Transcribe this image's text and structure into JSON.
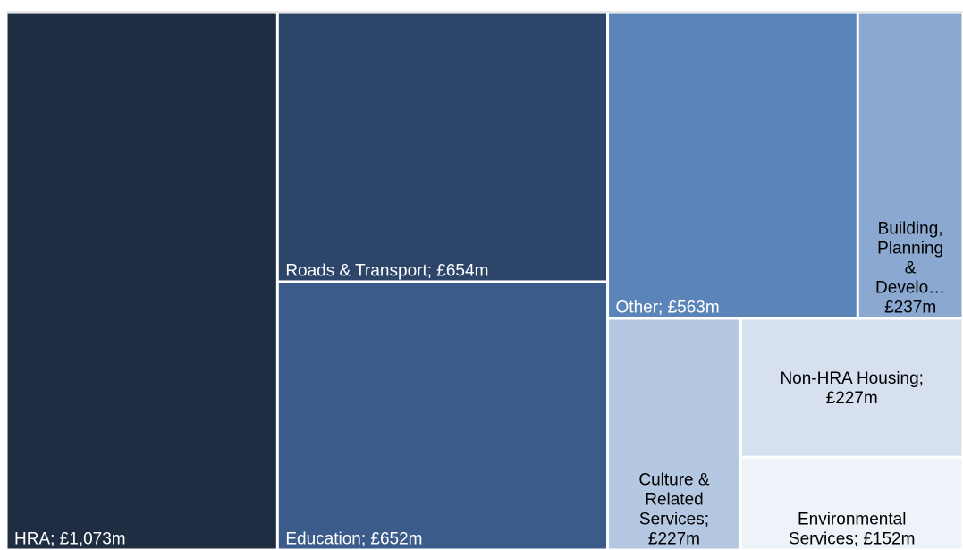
{
  "chart_data": {
    "type": "treemap",
    "labels": [
      [
        "HRA; £1,073m"
      ],
      [
        "Roads & Transport; £654m"
      ],
      [
        "Education; £652m"
      ],
      [
        "Other; £563m"
      ],
      [
        "Building,",
        "Planning",
        "&",
        "Develo…",
        "£237m"
      ],
      [
        "Culture &",
        "Related",
        "Services;",
        "£227m"
      ],
      [
        "Non-HRA Housing;",
        "£227m"
      ],
      [
        "Environmental",
        "Services; £152m"
      ]
    ],
    "values": [
      1073,
      654,
      652,
      563,
      237,
      227,
      227,
      152
    ],
    "colors": [
      "#1f2d42",
      "#2c4569",
      "#3b5c8b",
      "#5b84b8",
      "#8aa8d0",
      "#b4c8e1",
      "#d7e0ee",
      "#eef2f9"
    ],
    "text_colors": [
      "#ffffff",
      "#ffffff",
      "#ffffff",
      "#ffffff",
      "#000000",
      "#000000",
      "#000000",
      "#000000"
    ]
  }
}
